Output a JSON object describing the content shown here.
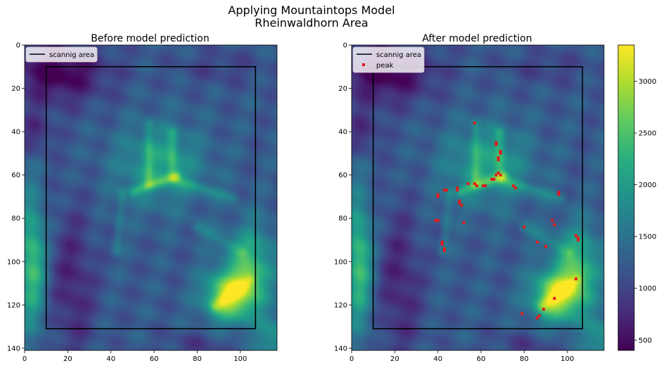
{
  "figure": {
    "title_line1": "Applying Mountaintops Model",
    "title_line2": "Rheinwaldhorn Area"
  },
  "chart_data": [
    {
      "type": "heatmap",
      "title": "Before model prediction",
      "xlabel": "",
      "ylabel": "",
      "xlim": [
        0,
        117
      ],
      "ylim": [
        141,
        0
      ],
      "x_ticks": [
        0,
        20,
        40,
        60,
        80,
        100
      ],
      "y_ticks": [
        0,
        20,
        40,
        60,
        80,
        100,
        120,
        140
      ],
      "colormap": "viridis",
      "value_range": [
        400,
        3350
      ],
      "legend_position": "upper-left",
      "legend": [
        {
          "label": "scannig area",
          "marker": "line",
          "color": "#000000"
        }
      ],
      "scanning_area": {
        "x0": 10,
        "x1": 107,
        "y0": 10,
        "y1": 131
      }
    },
    {
      "type": "heatmap",
      "title": "After model prediction",
      "xlabel": "",
      "ylabel": "",
      "xlim": [
        0,
        117
      ],
      "ylim": [
        141,
        0
      ],
      "x_ticks": [
        0,
        20,
        40,
        60,
        80,
        100
      ],
      "y_ticks": [
        0,
        20,
        40,
        60,
        80,
        100,
        120,
        140
      ],
      "colormap": "viridis",
      "value_range": [
        400,
        3350
      ],
      "legend_position": "upper-left",
      "legend": [
        {
          "label": "scannig area",
          "marker": "line",
          "color": "#000000"
        },
        {
          "label": "peak",
          "marker": "square",
          "color": "#e31a1c"
        }
      ],
      "scanning_area": {
        "x0": 10,
        "x1": 107,
        "y0": 10,
        "y1": 131
      },
      "peaks": [
        {
          "x": 57,
          "y": 36
        },
        {
          "x": 67,
          "y": 45
        },
        {
          "x": 67,
          "y": 46
        },
        {
          "x": 69,
          "y": 49
        },
        {
          "x": 69,
          "y": 50
        },
        {
          "x": 68,
          "y": 52
        },
        {
          "x": 68,
          "y": 53
        },
        {
          "x": 68,
          "y": 59
        },
        {
          "x": 67,
          "y": 60
        },
        {
          "x": 69,
          "y": 60
        },
        {
          "x": 65,
          "y": 62
        },
        {
          "x": 66,
          "y": 62
        },
        {
          "x": 54,
          "y": 64
        },
        {
          "x": 57,
          "y": 64
        },
        {
          "x": 58,
          "y": 65
        },
        {
          "x": 61,
          "y": 65
        },
        {
          "x": 62,
          "y": 65
        },
        {
          "x": 75,
          "y": 65
        },
        {
          "x": 76,
          "y": 66
        },
        {
          "x": 43,
          "y": 67
        },
        {
          "x": 44,
          "y": 67
        },
        {
          "x": 49,
          "y": 66
        },
        {
          "x": 49,
          "y": 67
        },
        {
          "x": 96,
          "y": 68
        },
        {
          "x": 96,
          "y": 69
        },
        {
          "x": 40,
          "y": 69
        },
        {
          "x": 40,
          "y": 70
        },
        {
          "x": 50,
          "y": 72
        },
        {
          "x": 50,
          "y": 73
        },
        {
          "x": 51,
          "y": 74
        },
        {
          "x": 40,
          "y": 81
        },
        {
          "x": 39,
          "y": 81
        },
        {
          "x": 52,
          "y": 82
        },
        {
          "x": 93,
          "y": 81
        },
        {
          "x": 94,
          "y": 83
        },
        {
          "x": 80,
          "y": 84
        },
        {
          "x": 104,
          "y": 88
        },
        {
          "x": 105,
          "y": 89
        },
        {
          "x": 105,
          "y": 90
        },
        {
          "x": 42,
          "y": 91
        },
        {
          "x": 42,
          "y": 92
        },
        {
          "x": 86,
          "y": 91
        },
        {
          "x": 90,
          "y": 93
        },
        {
          "x": 43,
          "y": 94
        },
        {
          "x": 43,
          "y": 95
        },
        {
          "x": 104,
          "y": 108
        },
        {
          "x": 94,
          "y": 117
        },
        {
          "x": 89,
          "y": 122
        },
        {
          "x": 79,
          "y": 124
        },
        {
          "x": 87,
          "y": 125
        },
        {
          "x": 86,
          "y": 126
        }
      ]
    }
  ],
  "colorbar": {
    "colormap": "viridis",
    "range": [
      400,
      3350
    ],
    "ticks": [
      500,
      1000,
      1500,
      2000,
      2500,
      3000
    ]
  }
}
